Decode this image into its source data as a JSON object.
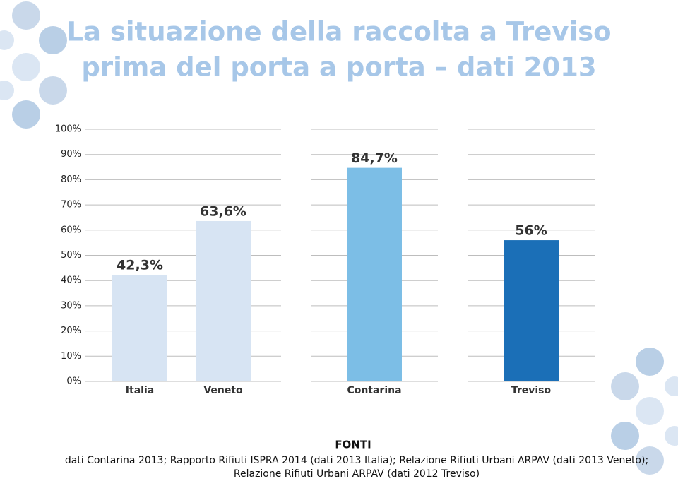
{
  "chart_data": {
    "type": "bar",
    "title": [
      "La situazione della raccolta a Treviso",
      "prima del porta a porta – dati 2013"
    ],
    "categories": [
      "Italia",
      "Veneto",
      "Contarina",
      "Treviso"
    ],
    "values": [
      42.3,
      63.6,
      84.7,
      56
    ],
    "value_labels": [
      "42,3%",
      "63,6%",
      "84,7%",
      "56%"
    ],
    "colors": [
      "#d7e4f3",
      "#d7e4f3",
      "#7cbee6",
      "#1b6fb7"
    ],
    "ylim": [
      0,
      100
    ],
    "yticks": [
      {
        "value": 0,
        "label": "0%"
      },
      {
        "value": 10,
        "label": "10%"
      },
      {
        "value": 20,
        "label": "20%"
      },
      {
        "value": 30,
        "label": "30%"
      },
      {
        "value": 40,
        "label": "40%"
      },
      {
        "value": 50,
        "label": "50%"
      },
      {
        "value": 60,
        "label": "60%"
      },
      {
        "value": 70,
        "label": "70%"
      },
      {
        "value": 80,
        "label": "80%"
      },
      {
        "value": 90,
        "label": "90%"
      },
      {
        "value": 100,
        "label": "100%"
      }
    ],
    "grid": true
  },
  "sources": {
    "heading": "FONTI",
    "lines": [
      "dati Contarina 2013; Rapporto Rifiuti ISPRA 2014 (dati 2013 Italia); Relazione Rifiuti Urbani ARPAV (dati 2013 Veneto);",
      "Relazione Rifiuti Urbani ARPAV (dati 2012 Treviso)"
    ]
  }
}
